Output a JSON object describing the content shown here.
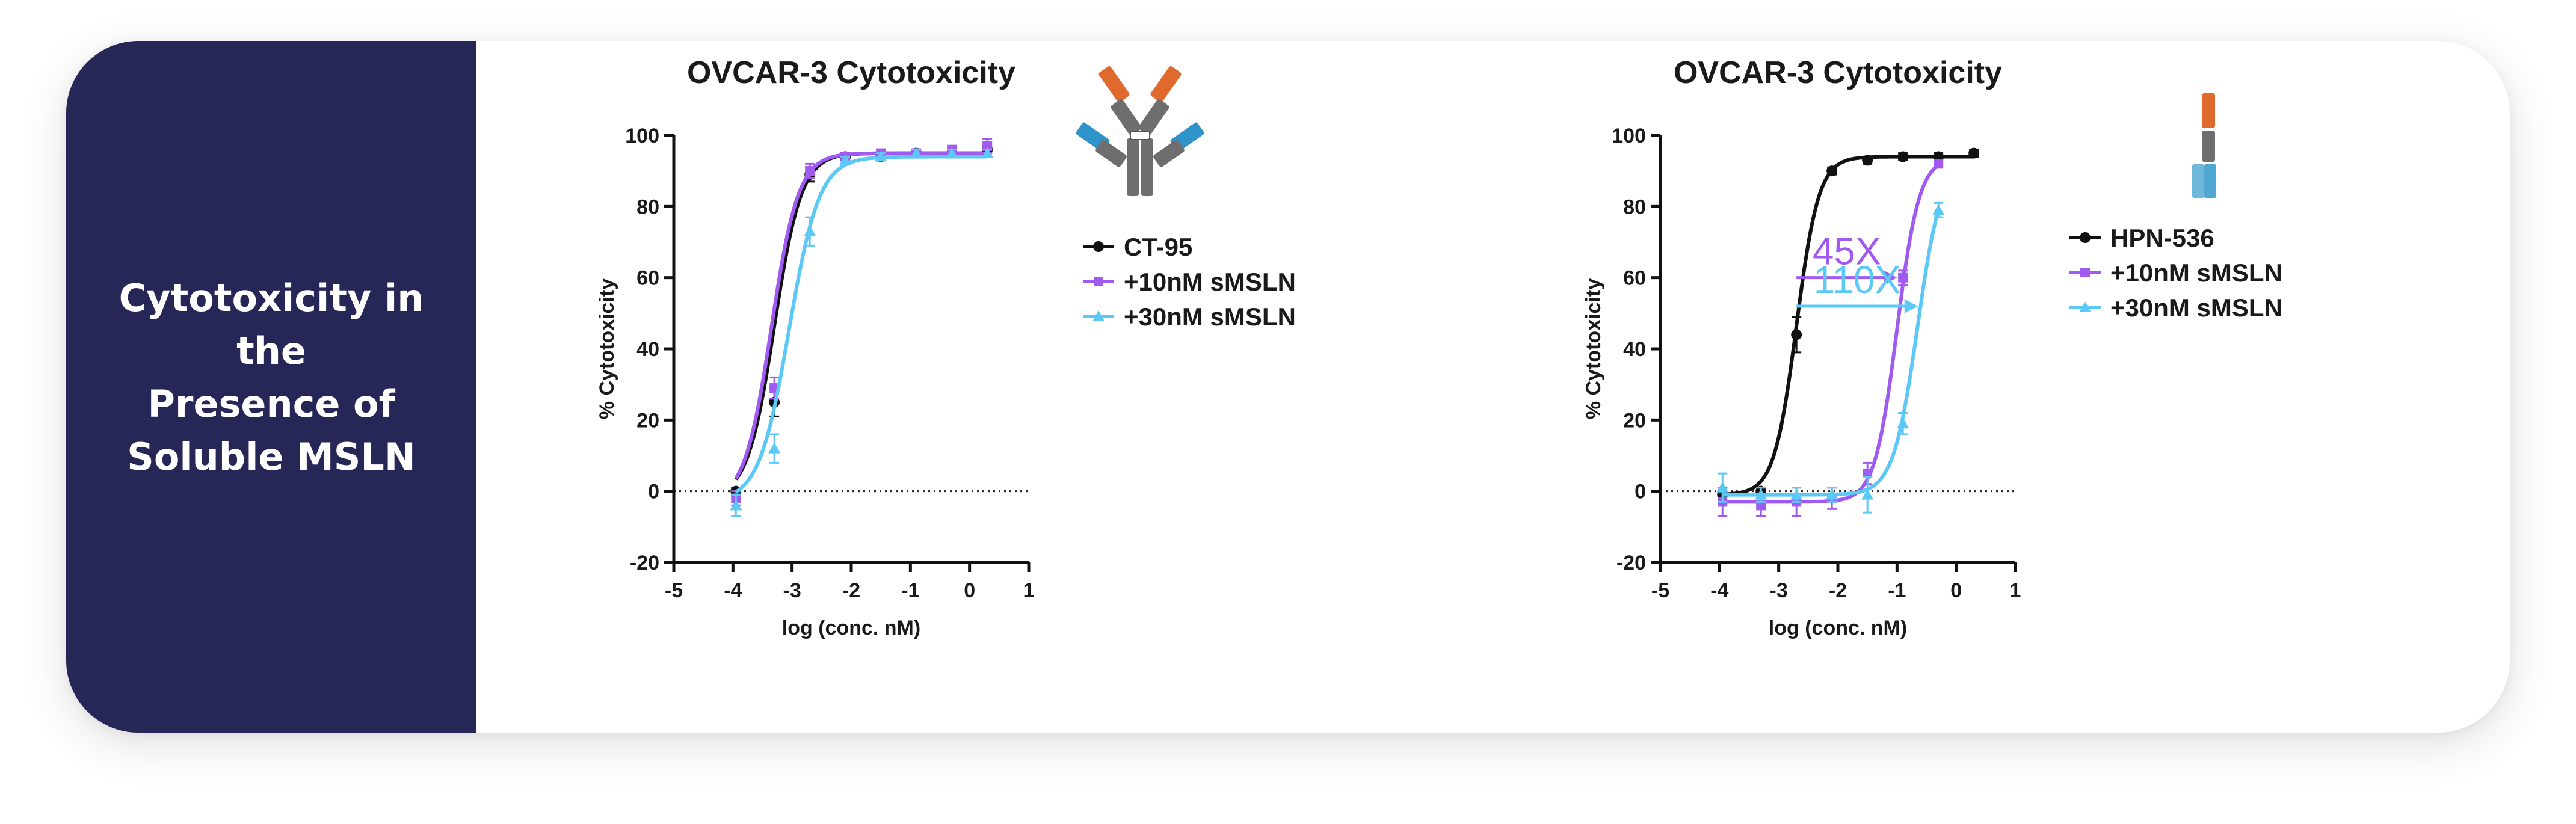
{
  "sidebar": {
    "title_lines": [
      "Cytotoxicity in the",
      "Presence of",
      "Soluble MSLN"
    ]
  },
  "colors": {
    "sidebar_bg": "#272757",
    "black": "#111111",
    "purple": "#A05AF0",
    "cyan": "#5BC8F5",
    "orange": "#E06A2E",
    "blue": "#2E93C8",
    "grey": "#6E6E6E"
  },
  "chart_data": [
    {
      "type": "line",
      "title": "OVCAR-3 Cytotoxicity",
      "xlabel": "log (conc. nM)",
      "ylabel": "% Cytotoxicity",
      "xlim": [
        -5,
        1
      ],
      "ylim": [
        -20,
        100
      ],
      "xticks": [
        "-5",
        "-4",
        "-3",
        "-2",
        "-1",
        "0",
        "1"
      ],
      "yticks": [
        "-20",
        "0",
        "20",
        "40",
        "60",
        "80",
        "100"
      ],
      "reference_line_y": 0,
      "icon": "antibody-icon",
      "series": [
        {
          "name": "CT-95",
          "color": "#111111",
          "marker": "circle",
          "bottom": -2,
          "top": 95,
          "logEC50": -3.3,
          "hill": 1.9,
          "x": [
            -3.95,
            -3.3,
            -2.7,
            -2.1,
            -1.5,
            -0.9,
            -0.3,
            0.3
          ],
          "y": [
            0,
            25,
            89,
            94,
            94,
            95,
            95,
            96
          ],
          "err": [
            1,
            4,
            2,
            1,
            1,
            1,
            1,
            1
          ]
        },
        {
          "name": "+10nM sMSLN",
          "color": "#A05AF0",
          "marker": "square",
          "bottom": -3,
          "top": 95,
          "logEC50": -3.35,
          "hill": 1.9,
          "x": [
            -3.95,
            -3.3,
            -2.7,
            -2.1,
            -1.5,
            -0.9,
            -0.3,
            0.3
          ],
          "y": [
            -2,
            29,
            90,
            94,
            95,
            95,
            96,
            97
          ],
          "err": [
            2,
            3,
            2,
            1,
            1,
            1,
            1,
            2
          ]
        },
        {
          "name": "+30nM sMSLN",
          "color": "#5BC8F5",
          "marker": "triangle",
          "bottom": -3,
          "top": 94,
          "logEC50": -3.05,
          "hill": 1.7,
          "x": [
            -3.95,
            -3.3,
            -2.7,
            -2.1,
            -1.5,
            -0.9,
            -0.3,
            0.3
          ],
          "y": [
            -4,
            12,
            73,
            93,
            94,
            95,
            95,
            95
          ],
          "err": [
            3,
            4,
            4,
            1,
            1,
            1,
            1,
            1
          ]
        }
      ],
      "annotations": []
    },
    {
      "type": "line",
      "title": "OVCAR-3 Cytotoxicity",
      "xlabel": "log (conc. nM)",
      "ylabel": "% Cytotoxicity",
      "xlim": [
        -5,
        1
      ],
      "ylim": [
        -20,
        100
      ],
      "xticks": [
        "-5",
        "-4",
        "-3",
        "-2",
        "-1",
        "0",
        "1"
      ],
      "yticks": [
        "-20",
        "0",
        "20",
        "40",
        "60",
        "80",
        "100"
      ],
      "reference_line_y": 0,
      "icon": "hpn-536-construct-icon",
      "series": [
        {
          "name": "HPN-536",
          "color": "#111111",
          "marker": "circle",
          "bottom": -1,
          "top": 94,
          "logEC50": -2.7,
          "hill": 2.3,
          "x": [
            -3.95,
            -3.3,
            -2.7,
            -2.1,
            -1.5,
            -0.9,
            -0.3,
            0.3
          ],
          "y": [
            -1,
            0,
            44,
            90,
            93,
            94,
            94,
            95
          ],
          "err": [
            2,
            1,
            5,
            1,
            1,
            1,
            1,
            1
          ]
        },
        {
          "name": "+10nM sMSLN",
          "color": "#A05AF0",
          "marker": "square",
          "bottom": -3,
          "top": 94,
          "logEC50": -1.0,
          "hill": 2.3,
          "x": [
            -3.95,
            -3.3,
            -2.7,
            -2.1,
            -1.5,
            -0.9,
            -0.3
          ],
          "y": [
            -3,
            -4,
            -3,
            -2,
            5,
            60,
            92
          ],
          "err": [
            4,
            3,
            4,
            3,
            3,
            2,
            1
          ]
        },
        {
          "name": "+30nM sMSLN",
          "color": "#5BC8F5",
          "marker": "triangle",
          "bottom": -1,
          "top": 94,
          "logEC50": -0.65,
          "hill": 2.1,
          "x": [
            -3.95,
            -3.3,
            -2.7,
            -2.1,
            -1.5,
            -0.9,
            -0.3
          ],
          "y": [
            1,
            -1,
            -1,
            -1,
            -1,
            19,
            79
          ],
          "err": [
            4,
            2,
            2,
            2,
            5,
            3,
            2
          ]
        }
      ],
      "annotations": [
        {
          "text": "45X",
          "color": "#A05AF0",
          "x_from": -2.7,
          "x_to": -1.0,
          "y": 60
        },
        {
          "text": "110X",
          "color": "#5BC8F5",
          "x_from": -2.7,
          "x_to": -0.65,
          "y": 52
        }
      ]
    }
  ]
}
